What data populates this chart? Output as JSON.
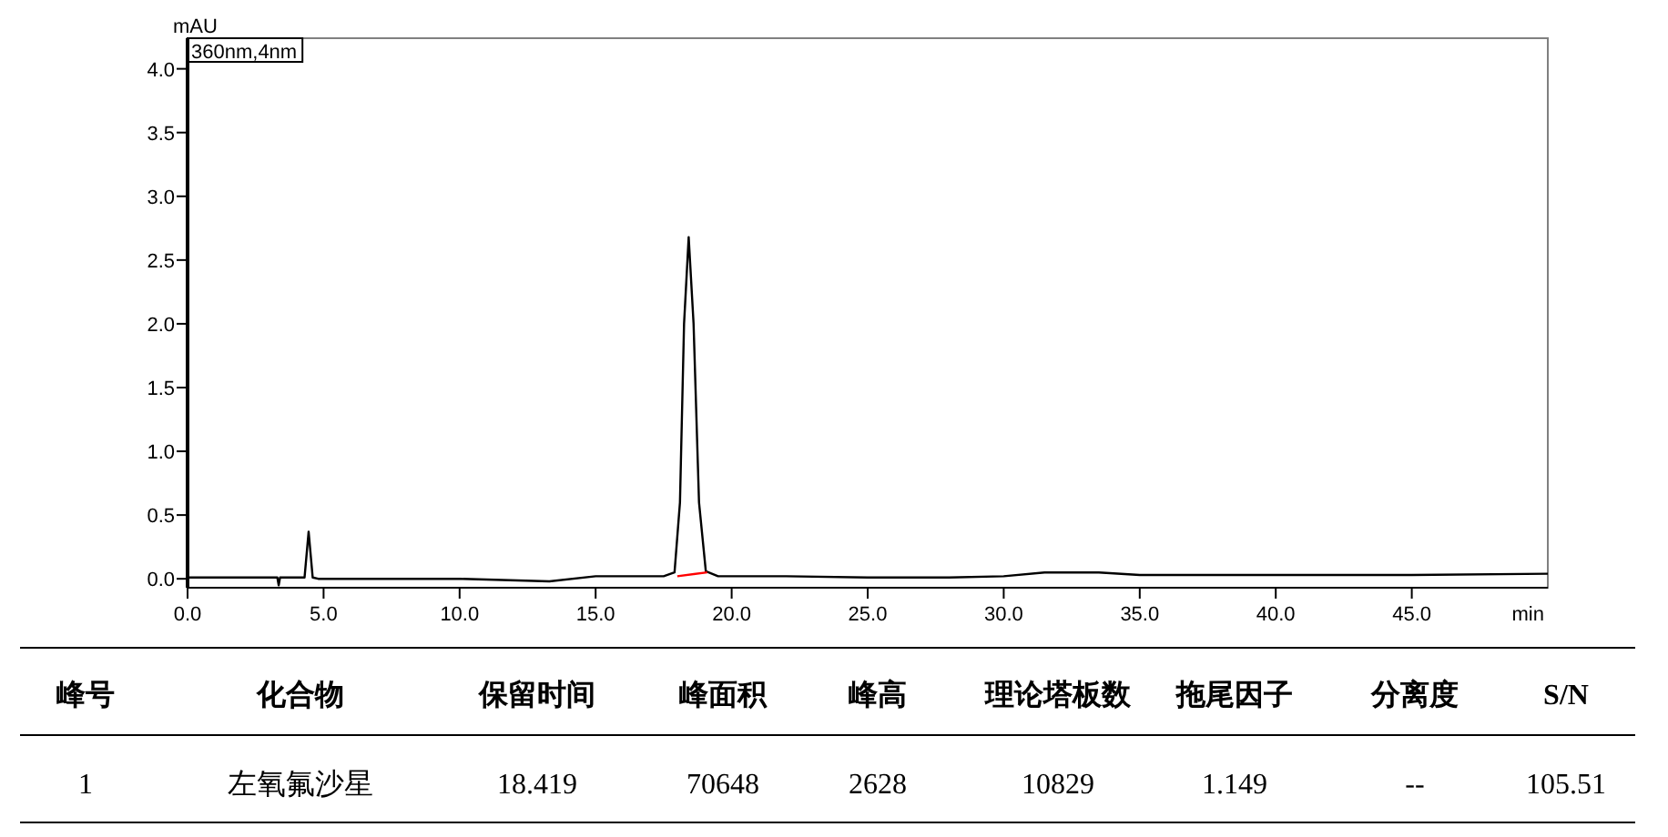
{
  "chart_data": {
    "type": "line",
    "xlabel": "min",
    "ylabel": "mAU",
    "xlim": [
      0,
      50
    ],
    "ylim": [
      -0.07,
      4.24
    ],
    "xticks": [
      {
        "value": 0,
        "label": "0.0"
      },
      {
        "value": 5,
        "label": "5.0"
      },
      {
        "value": 10,
        "label": "10.0"
      },
      {
        "value": 15,
        "label": "15.0"
      },
      {
        "value": 20,
        "label": "20.0"
      },
      {
        "value": 25,
        "label": "25.0"
      },
      {
        "value": 30,
        "label": "30.0"
      },
      {
        "value": 35,
        "label": "35.0"
      },
      {
        "value": 40,
        "label": "40.0"
      },
      {
        "value": 45,
        "label": "45.0"
      }
    ],
    "yticks": [
      {
        "value": 0,
        "label": "0.0"
      },
      {
        "value": 0.5,
        "label": "0.5"
      },
      {
        "value": 1,
        "label": "1.0"
      },
      {
        "value": 1.5,
        "label": "1.5"
      },
      {
        "value": 2,
        "label": "2.0"
      },
      {
        "value": 2.5,
        "label": "2.5"
      },
      {
        "value": 3,
        "label": "3.0"
      },
      {
        "value": 3.5,
        "label": "3.5"
      },
      {
        "value": 4,
        "label": "4.0"
      }
    ],
    "grid": false,
    "marker": "none",
    "line_style": "solid",
    "series": [
      {
        "color": "#000000",
        "x": [
          0,
          1.5,
          3.3,
          3.35,
          3.4,
          4.3,
          4.45,
          4.6,
          4.8,
          7,
          10,
          13.3,
          15,
          17.5,
          17.9,
          18.1,
          18.25,
          18.42,
          18.6,
          18.8,
          19.05,
          19.5,
          22,
          25,
          28,
          30,
          31.5,
          33.5,
          35,
          40,
          45,
          50
        ],
        "values": [
          0.01,
          0.01,
          0.01,
          -0.05,
          0.01,
          0.01,
          0.37,
          0.01,
          0.0,
          0.0,
          0.0,
          -0.02,
          0.02,
          0.02,
          0.05,
          0.6,
          2.0,
          2.68,
          2.0,
          0.6,
          0.06,
          0.02,
          0.02,
          0.01,
          0.01,
          0.02,
          0.05,
          0.05,
          0.03,
          0.03,
          0.03,
          0.04
        ]
      },
      {
        "color": "#ff0000",
        "x": [
          18.0,
          19.1
        ],
        "values": [
          0.02,
          0.05
        ]
      }
    ],
    "annotations": [
      "360nm,4nm",
      "峰号",
      "化合物",
      "保留时间",
      "峰面积",
      "峰高",
      "理论塔板数",
      "拖尾因子",
      "分离度",
      "S/N",
      "1",
      "左氧氟沙星",
      "18.419",
      "70648",
      "2628",
      "10829",
      "1.149",
      "--",
      "105.51"
    ]
  }
}
